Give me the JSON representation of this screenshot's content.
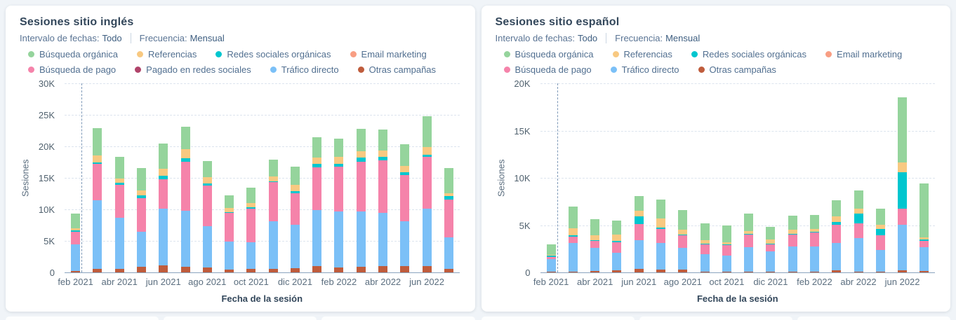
{
  "page": {
    "background": "#f0f4f8",
    "accent_axis": "#8aa4bf",
    "grid_color": "#dce4ee",
    "dashed_line_color": "#7e99b8"
  },
  "cards": [
    {
      "title": "Sesiones sitio inglés",
      "filters": [
        {
          "label": "Intervalo de fechas:",
          "value": "Todo"
        },
        {
          "label": "Frecuencia:",
          "value": "Mensual"
        }
      ],
      "legend_rows": [
        [
          {
            "label": "Búsqueda orgánica",
            "color": "#95d49c"
          },
          {
            "label": "Referencias",
            "color": "#f8c981"
          },
          {
            "label": "Redes sociales orgánicas",
            "color": "#00c6cf"
          },
          {
            "label": "Email marketing",
            "color": "#f89e83"
          }
        ],
        [
          {
            "label": "Búsqueda de pago",
            "color": "#f583aa"
          },
          {
            "label": "Pagado en redes sociales",
            "color": "#b0436a"
          },
          {
            "label": "Tráfico directo",
            "color": "#7bc0f7"
          },
          {
            "label": "Otras campañas",
            "color": "#bf5c3c"
          }
        ]
      ]
    },
    {
      "title": "Sesiones sitio español",
      "filters": [
        {
          "label": "Intervalo de fechas:",
          "value": "Todo"
        },
        {
          "label": "Frecuencia:",
          "value": "Mensual"
        }
      ],
      "legend_rows": [
        [
          {
            "label": "Búsqueda orgánica",
            "color": "#95d49c"
          },
          {
            "label": "Referencias",
            "color": "#f8c981"
          },
          {
            "label": "Redes sociales orgánicas",
            "color": "#00c6cf"
          },
          {
            "label": "Email marketing",
            "color": "#f89e83"
          }
        ],
        [
          {
            "label": "Búsqueda de pago",
            "color": "#f583aa"
          },
          {
            "label": "Tráfico directo",
            "color": "#7bc0f7"
          },
          {
            "label": "Otras campañas",
            "color": "#bf5c3c"
          }
        ]
      ]
    }
  ],
  "chart_data": [
    {
      "type": "bar",
      "stacked": true,
      "title": "Sesiones sitio inglés",
      "xlabel": "Fecha de la sesión",
      "ylabel": "Sesiones",
      "ylim": [
        0,
        30000
      ],
      "grid": "dashed-horizontal",
      "legend_position": "top",
      "ytick_labels": [
        "0",
        "5K",
        "10K",
        "15K",
        "20K",
        "25K",
        "30K"
      ],
      "categories": [
        "feb 2021",
        "mar 2021",
        "abr 2021",
        "may 2021",
        "jun 2021",
        "jul 2021",
        "ago 2021",
        "sep 2021",
        "oct 2021",
        "nov 2021",
        "dic 2021",
        "ene 2022",
        "feb 2022",
        "mar 2022",
        "abr 2022",
        "may 2022",
        "jun 2022",
        "jul 2022"
      ],
      "xtick_labels": [
        "feb 2021",
        "abr 2021",
        "jun 2021",
        "ago 2021",
        "oct 2021",
        "dic 2021",
        "feb 2022",
        "abr 2022",
        "jun 2022"
      ],
      "xtick_every": 2,
      "dashed_vline_at": "feb 2021",
      "series": [
        {
          "name": "Otras campañas",
          "color": "#bf5c3c",
          "values": [
            200,
            600,
            600,
            850,
            1100,
            900,
            800,
            500,
            550,
            600,
            650,
            1000,
            800,
            900,
            1050,
            1000,
            1000,
            550
          ]
        },
        {
          "name": "Tráfico directo",
          "color": "#7bc0f7",
          "values": [
            4300,
            10900,
            8100,
            5650,
            9000,
            8900,
            6500,
            4400,
            4250,
            7500,
            6950,
            8900,
            8900,
            8800,
            8350,
            7100,
            9100,
            5050
          ]
        },
        {
          "name": "Búsqueda de pago",
          "color": "#f583aa",
          "values": [
            2000,
            5700,
            5200,
            5300,
            4700,
            7800,
            6500,
            4500,
            5300,
            6200,
            5000,
            6800,
            7100,
            7900,
            8400,
            7400,
            8200,
            6000
          ]
        },
        {
          "name": "Pagado en redes sociales",
          "color": "#b0436a",
          "values": [
            0,
            0,
            0,
            0,
            0,
            0,
            0,
            0,
            0,
            0,
            0,
            0,
            0,
            0,
            0,
            0,
            0,
            0
          ]
        },
        {
          "name": "Redes sociales orgánicas",
          "color": "#00c6cf",
          "values": [
            200,
            300,
            300,
            400,
            500,
            500,
            300,
            200,
            250,
            200,
            300,
            500,
            400,
            600,
            500,
            400,
            400,
            500
          ]
        },
        {
          "name": "Referencias",
          "color": "#f8c981",
          "values": [
            300,
            1100,
            700,
            800,
            1100,
            1500,
            1000,
            600,
            650,
            700,
            1000,
            1000,
            1100,
            1000,
            1000,
            1000,
            1200,
            500
          ]
        },
        {
          "name": "Email marketing",
          "color": "#f89e83",
          "values": [
            0,
            0,
            0,
            0,
            0,
            0,
            0,
            0,
            0,
            0,
            0,
            0,
            0,
            0,
            0,
            0,
            0,
            0
          ]
        },
        {
          "name": "Búsqueda orgánica",
          "color": "#95d49c",
          "values": [
            2300,
            4300,
            3400,
            3600,
            4100,
            3500,
            2600,
            2000,
            2400,
            2700,
            2900,
            3200,
            2900,
            3600,
            3400,
            3400,
            4900,
            4000
          ]
        }
      ]
    },
    {
      "type": "bar",
      "stacked": true,
      "title": "Sesiones sitio español",
      "xlabel": "Fecha de la sesión",
      "ylabel": "Sesiones",
      "ylim": [
        0,
        20000
      ],
      "grid": "dashed-horizontal",
      "legend_position": "top",
      "ytick_labels": [
        "0",
        "5K",
        "10K",
        "15K",
        "20K"
      ],
      "categories": [
        "feb 2021",
        "mar 2021",
        "abr 2021",
        "may 2021",
        "jun 2021",
        "jul 2021",
        "ago 2021",
        "sep 2021",
        "oct 2021",
        "nov 2021",
        "dic 2021",
        "ene 2022",
        "feb 2022",
        "mar 2022",
        "abr 2022",
        "may 2022",
        "jun 2022",
        "jul 2022"
      ],
      "xtick_labels": [
        "feb 2021",
        "abr 2021",
        "jun 2021",
        "ago 2021",
        "oct 2021",
        "dic 2021",
        "feb 2022",
        "abr 2022",
        "jun 2022"
      ],
      "xtick_every": 2,
      "dashed_vline_at": "feb 2021",
      "series": [
        {
          "name": "Otras campañas",
          "color": "#bf5c3c",
          "values": [
            50,
            50,
            150,
            200,
            400,
            300,
            300,
            50,
            50,
            100,
            100,
            100,
            100,
            200,
            100,
            100,
            200,
            150
          ]
        },
        {
          "name": "Tráfico directo",
          "color": "#7bc0f7",
          "values": [
            1350,
            3050,
            2450,
            1900,
            3000,
            2800,
            2300,
            1850,
            1750,
            2600,
            2100,
            2650,
            2650,
            2900,
            3500,
            2300,
            4850,
            2550
          ]
        },
        {
          "name": "Búsqueda de pago",
          "color": "#f583aa",
          "values": [
            250,
            700,
            700,
            1100,
            1700,
            1500,
            1300,
            1100,
            1100,
            1300,
            800,
            1250,
            1450,
            1950,
            1550,
            1550,
            1700,
            600
          ]
        },
        {
          "name": "Redes sociales orgánicas",
          "color": "#00c6cf",
          "values": [
            100,
            150,
            100,
            150,
            800,
            150,
            100,
            50,
            50,
            50,
            50,
            100,
            100,
            250,
            1100,
            650,
            3850,
            150
          ]
        },
        {
          "name": "Referencias",
          "color": "#f8c981",
          "values": [
            100,
            750,
            500,
            650,
            600,
            950,
            500,
            350,
            250,
            350,
            450,
            400,
            300,
            600,
            500,
            450,
            1000,
            250
          ]
        },
        {
          "name": "Email marketing",
          "color": "#f89e83",
          "values": [
            0,
            0,
            0,
            0,
            0,
            0,
            0,
            0,
            0,
            0,
            0,
            0,
            0,
            0,
            0,
            0,
            0,
            0
          ]
        },
        {
          "name": "Búsqueda orgánica",
          "color": "#95d49c",
          "values": [
            1150,
            2300,
            1700,
            1500,
            1600,
            2000,
            2100,
            1800,
            1800,
            1800,
            1350,
            1500,
            1500,
            1700,
            1900,
            1700,
            6900,
            5700
          ]
        }
      ]
    }
  ]
}
